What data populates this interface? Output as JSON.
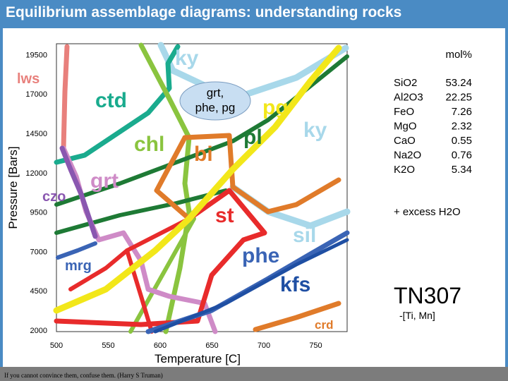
{
  "slide": {
    "title": "Equilibrium assemblage diagrams: understanding rocks",
    "footer": "If you cannot convince them, confuse them. (Harry S Truman)"
  },
  "diagram": {
    "x_axis": {
      "label": "Temperature [C]",
      "ticks": [
        "500",
        "550",
        "600",
        "650",
        "700",
        "750"
      ]
    },
    "y_axis": {
      "label": "Pressure [Bars]",
      "ticks": [
        "2000",
        "4500",
        "7000",
        "9500",
        "12000",
        "14500",
        "17000",
        "19500"
      ]
    },
    "field_labels": {
      "ky_top": "ky",
      "lws": "lws",
      "ctd": "ctd",
      "grt_phe_pg_line1": "grt,",
      "grt_phe_pg_line2": "phe, pg",
      "pg": "pg",
      "ky_right": "ky",
      "chl": "chl",
      "bi": "bi",
      "pl": "pl",
      "grt": "grt",
      "czo": "czo",
      "st": "st",
      "sil": "sil",
      "phe": "phe",
      "mrg": "mrg",
      "kfs": "kfs",
      "crd": "crd"
    },
    "composition": {
      "unit": "mol%",
      "oxides": [
        {
          "name": "SiO2",
          "value": "53.24"
        },
        {
          "name": "Al2O3",
          "value": "22.25"
        },
        {
          "name": "FeO",
          "value": "7.26"
        },
        {
          "name": "MgO",
          "value": "2.32"
        },
        {
          "name": "CaO",
          "value": "0.55"
        },
        {
          "name": "Na2O",
          "value": "0.76"
        },
        {
          "name": "K2O",
          "value": "5.34"
        }
      ],
      "excess": "+ excess H2O"
    },
    "sample": {
      "name": "TN307",
      "note": "-[Ti, Mn]"
    },
    "colors": {
      "ky": "#a8d8ea",
      "lws": "#e8807c",
      "ctd": "#1aab8e",
      "chl": "#8ac43f",
      "bi": "#e07b2a",
      "pl": "#1e7a35",
      "grt": "#cf8bc7",
      "czo": "#8a57b0",
      "st": "#e82b2b",
      "pg": "#f2e71a",
      "sil": "#a8d8ea",
      "phe": "#3a64b5",
      "mrg": "#3a64b5",
      "kfs": "#1f4fa3",
      "crd": "#e07b2a"
    }
  }
}
